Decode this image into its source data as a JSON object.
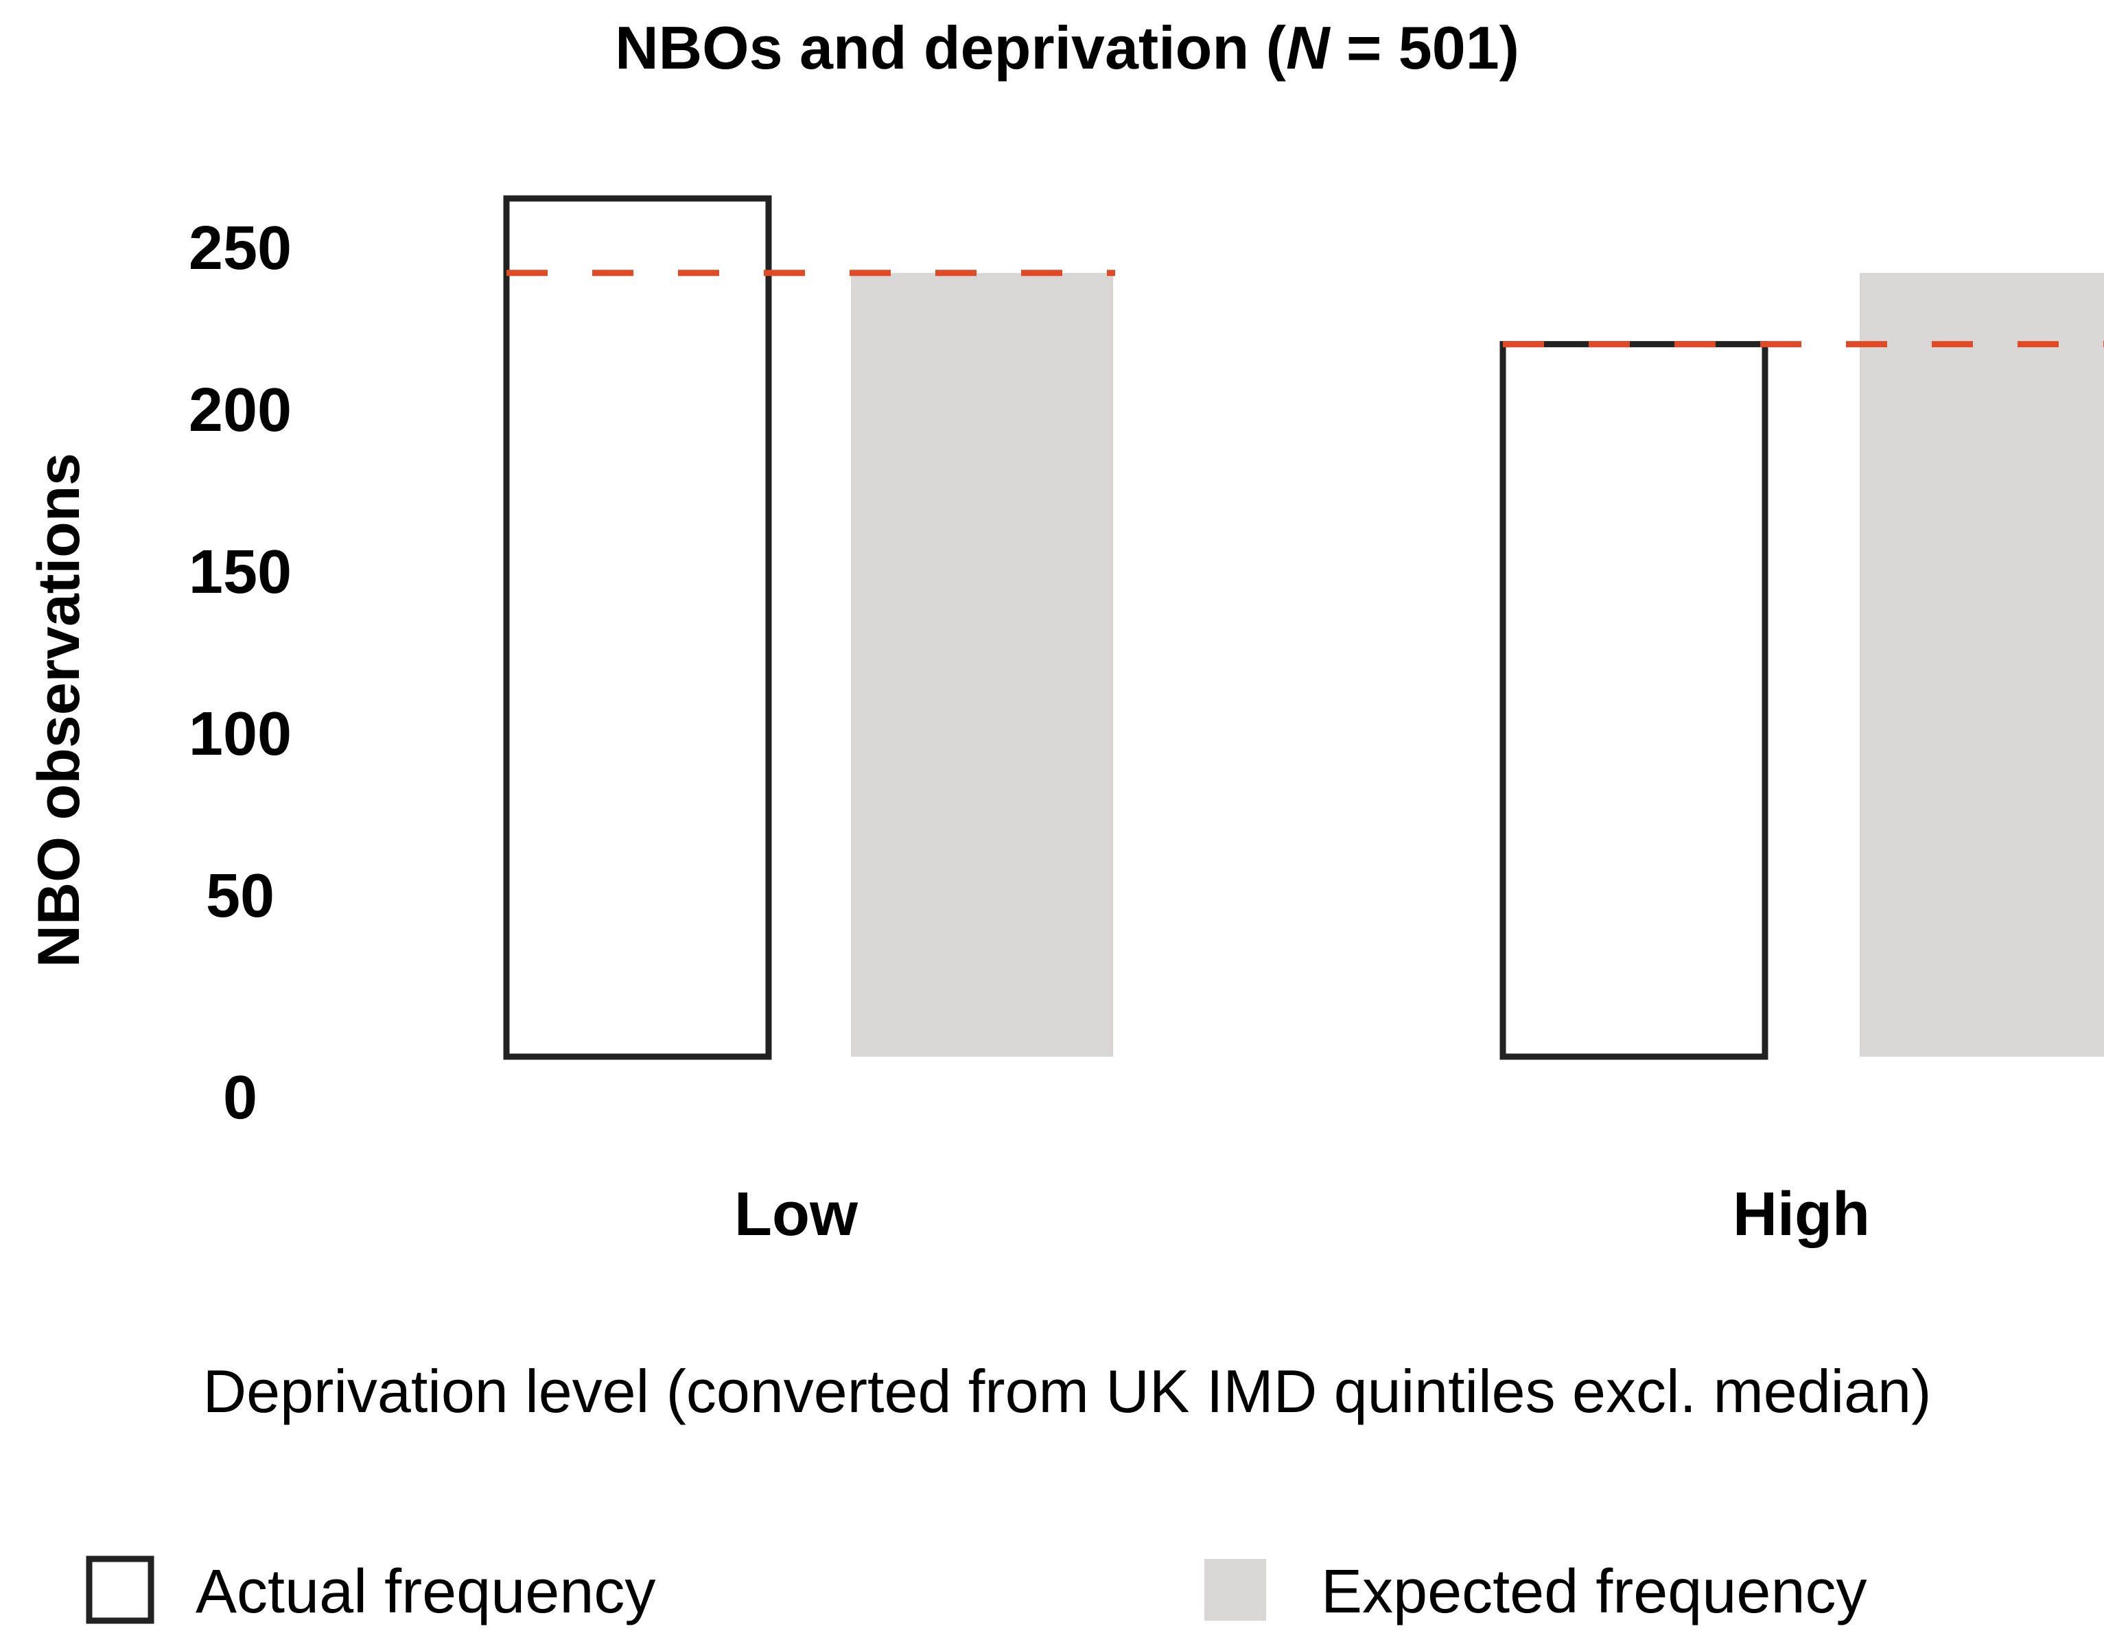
{
  "chart_data": {
    "type": "bar",
    "title_prefix": "NBOs and deprivation (",
    "title_n": "N",
    "title_suffix": " = 501)",
    "xlabel": "Deprivation level (converted from UK IMD quintiles excl. median)",
    "ylabel": "NBO observations",
    "yticks": [
      0,
      50,
      100,
      150,
      200,
      250
    ],
    "ylim": [
      0,
      260
    ],
    "categories": [
      "Low",
      "High"
    ],
    "series": [
      {
        "name": "Actual frequency",
        "style": "outline",
        "values": [
          265,
          220
        ]
      },
      {
        "name": "Expected frequency",
        "style": "filled",
        "values": [
          242,
          242
        ]
      }
    ],
    "reference_lines": [
      {
        "category": "Low",
        "value": 242
      },
      {
        "category": "High",
        "value": 220
      }
    ],
    "colors": {
      "outline": "#222222",
      "expected_fill": "#d9d6d6",
      "dashed_line": "#e04a26"
    }
  }
}
